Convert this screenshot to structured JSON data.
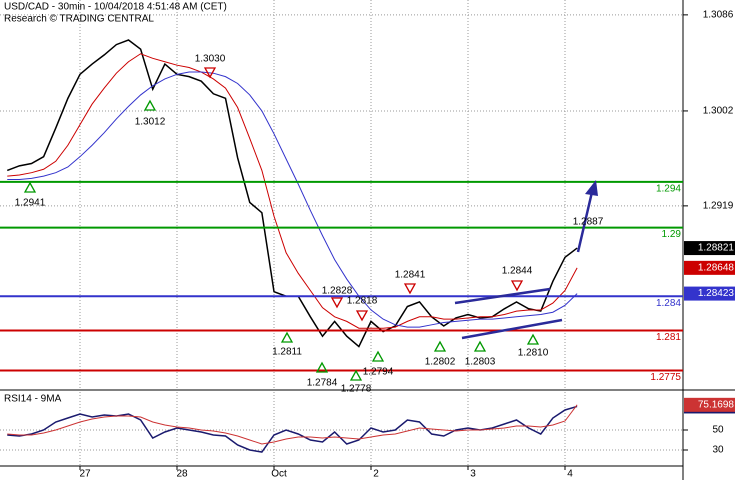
{
  "chart_data": [
    {
      "type": "line",
      "title": "USD/CAD - 30min - 10/04/2018 4:51:48 AM (CET)",
      "subtitle": "Research © TRADING CENTRAL",
      "categories": [
        null,
        null,
        null,
        null,
        null,
        null,
        "27",
        null,
        null,
        null,
        null,
        null,
        null,
        null,
        "28",
        null,
        null,
        null,
        null,
        null,
        null,
        null,
        "Oct",
        null,
        null,
        null,
        null,
        null,
        null,
        null,
        "2",
        null,
        null,
        null,
        null,
        null,
        null,
        null,
        "3",
        null,
        null,
        null,
        null,
        null,
        null,
        null,
        "4",
        null
      ],
      "series": [
        {
          "color": "#000000",
          "values": [
            1.295,
            1.2954,
            1.2956,
            1.2962,
            1.2987,
            1.3013,
            1.3034,
            1.3043,
            1.3051,
            1.306,
            1.3064,
            1.3056,
            1.3021,
            1.3043,
            1.3034,
            1.3032,
            1.3028,
            1.3017,
            1.3013,
            1.2961,
            1.2922,
            1.2913,
            1.2844,
            1.284,
            1.284,
            1.2822,
            1.2805,
            1.2818,
            1.2805,
            1.2796,
            1.2818,
            1.2809,
            1.2814,
            1.2831,
            1.2835,
            1.2822,
            1.2814,
            1.2821,
            1.2824,
            1.2821,
            1.2822,
            1.2829,
            1.2835,
            1.2829,
            1.2827,
            1.2853,
            1.2874,
            1.28821
          ]
        },
        {
          "color": "#cc0000",
          "values": [
            1.2945,
            1.2946,
            1.2948,
            1.2951,
            1.2958,
            1.2972,
            1.299,
            1.3008,
            1.3022,
            1.3035,
            1.3045,
            1.3052,
            1.3048,
            1.3045,
            1.3042,
            1.304,
            1.3036,
            1.303,
            1.3022,
            1.3005,
            1.2978,
            1.295,
            1.291,
            1.2878,
            1.286,
            1.2845,
            1.283,
            1.2822,
            1.2818,
            1.2812,
            1.2812,
            1.2812,
            1.2813,
            1.2818,
            1.2822,
            1.2822,
            1.282,
            1.282,
            1.2821,
            1.2822,
            1.2822,
            1.2824,
            1.2827,
            1.2828,
            1.2828,
            1.2834,
            1.2845,
            1.28648
          ]
        },
        {
          "color": "#3333cc",
          "values": [
            1.2942,
            1.2942,
            1.2943,
            1.2945,
            1.2948,
            1.2953,
            1.2962,
            1.2972,
            1.2983,
            1.2995,
            1.3006,
            1.3016,
            1.3024,
            1.303,
            1.3034,
            1.3036,
            1.3036,
            1.3035,
            1.3032,
            1.3026,
            1.3016,
            1.3002,
            1.2982,
            1.296,
            1.2938,
            1.2915,
            1.2893,
            1.2872,
            1.2855,
            1.284,
            1.2828,
            1.282,
            1.2815,
            1.2813,
            1.2813,
            1.2815,
            1.2817,
            1.2818,
            1.2819,
            1.282,
            1.282,
            1.2821,
            1.2822,
            1.2823,
            1.2824,
            1.2826,
            1.2832,
            1.28423
          ]
        }
      ],
      "ylim": [
        1.2758,
        1.3099
      ],
      "yticks": [
        1.3086,
        1.3002,
        1.2919
      ],
      "grid": true,
      "levels": [
        {
          "value": 1.294,
          "color": "#009900"
        },
        {
          "value": 1.29,
          "color": "#009900"
        },
        {
          "value": 1.284,
          "color": "#3333cc"
        },
        {
          "value": 1.281,
          "color": "#cc0000"
        },
        {
          "value": 1.2775,
          "color": "#cc0000"
        }
      ],
      "annotations": [
        {
          "value": 1.303,
          "label": "1.3030",
          "marker": "down"
        },
        {
          "value": 1.3012,
          "marker": "up"
        },
        {
          "value": 1.2941,
          "marker": "up"
        },
        {
          "value": 1.2887,
          "marker": "none"
        },
        {
          "value": 1.2841,
          "marker": "down"
        },
        {
          "value": 1.2844,
          "marker": "down"
        },
        {
          "value": 1.2828,
          "marker": "down"
        },
        {
          "value": 1.2818,
          "marker": "down"
        },
        {
          "value": 1.2811,
          "marker": "up"
        },
        {
          "value": 1.2784,
          "marker": "up"
        },
        {
          "value": 1.2778,
          "marker": "up"
        },
        {
          "value": 1.2794,
          "marker": "up"
        },
        {
          "value": 1.2802,
          "marker": "up"
        },
        {
          "value": 1.2803,
          "marker": "up"
        },
        {
          "value": 1.281,
          "label": "1.2810",
          "marker": "up"
        }
      ]
    },
    {
      "type": "line",
      "title": "RSI14 - 9MA",
      "series": [
        {
          "color": "#1a1a6e",
          "values": [
            45,
            44,
            46,
            50,
            58,
            62,
            66,
            63,
            65,
            64,
            66,
            60,
            42,
            48,
            52,
            50,
            48,
            45,
            44,
            35,
            30,
            28,
            45,
            50,
            46,
            40,
            38,
            48,
            36,
            40,
            52,
            48,
            50,
            60,
            58,
            46,
            44,
            50,
            52,
            50,
            52,
            56,
            60,
            52,
            46,
            62,
            70,
            73.5456
          ]
        },
        {
          "color": "#cc3333",
          "values": [
            46,
            45,
            45,
            47,
            50,
            54,
            58,
            61,
            63,
            64,
            64,
            63,
            58,
            55,
            53,
            52,
            50,
            49,
            47,
            44,
            40,
            36,
            38,
            41,
            43,
            43,
            42,
            43,
            42,
            41,
            43,
            45,
            46,
            49,
            52,
            51,
            50,
            49,
            50,
            50,
            51,
            52,
            54,
            54,
            53,
            55,
            59,
            75.1698
          ]
        }
      ],
      "ylim": [
        14,
        88
      ],
      "yticks": [
        50,
        30
      ],
      "grid": true
    }
  ]
}
